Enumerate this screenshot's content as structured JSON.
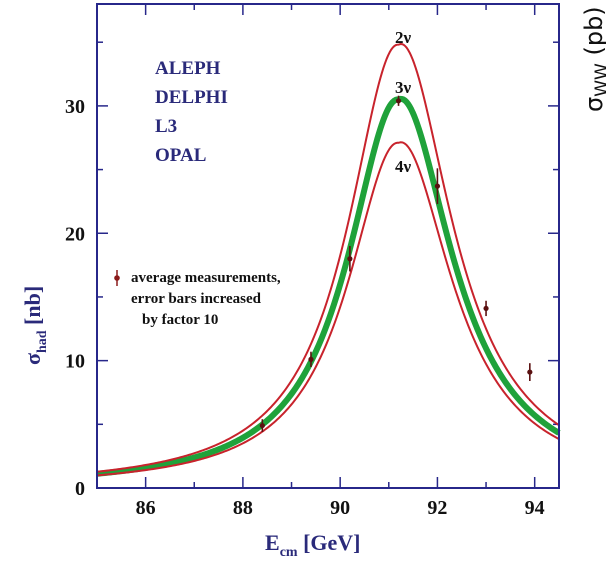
{
  "chart_data": {
    "type": "line",
    "xlabel": {
      "main": "E",
      "sub": "cm",
      "unit": " [GeV]"
    },
    "ylabel": {
      "main": "σ",
      "sub": "had",
      "unit": " [nb]"
    },
    "xlim": [
      85.0,
      94.5
    ],
    "ylim": [
      0,
      38
    ],
    "x_ticks": [
      86,
      88,
      90,
      92,
      94
    ],
    "y_ticks": [
      0,
      10,
      20,
      30
    ],
    "experiments": [
      "ALEPH",
      "DELPHI",
      "L3",
      "OPAL"
    ],
    "legend": {
      "lines": [
        "average measurements,",
        "error bars increased",
        "by factor 10"
      ],
      "placement": "middle-left"
    },
    "resonance": {
      "mass": 91.2,
      "width": 2.5
    },
    "series": [
      {
        "name": "2ν",
        "peak": 34.8,
        "color": "#c8232c",
        "width": 2
      },
      {
        "name": "3ν",
        "peak": 30.5,
        "color": "#1fa23a",
        "width": 6
      },
      {
        "name": "4ν",
        "peak": 27.1,
        "color": "#c8232c",
        "width": 2
      }
    ],
    "measurements": [
      {
        "x": 88.4,
        "y": 4.9,
        "err": 0.5
      },
      {
        "x": 89.4,
        "y": 10.1,
        "err": 0.6
      },
      {
        "x": 90.2,
        "y": 18.0,
        "err": 1.0
      },
      {
        "x": 91.2,
        "y": 30.4,
        "err": 0.4
      },
      {
        "x": 92.0,
        "y": 23.7,
        "err": 1.4
      },
      {
        "x": 93.0,
        "y": 14.1,
        "err": 0.6
      },
      {
        "x": 93.9,
        "y": 9.1,
        "err": 0.7
      }
    ],
    "right_axis_label": {
      "main": "σ",
      "sub": "WW",
      "unit": " (pb)"
    }
  }
}
